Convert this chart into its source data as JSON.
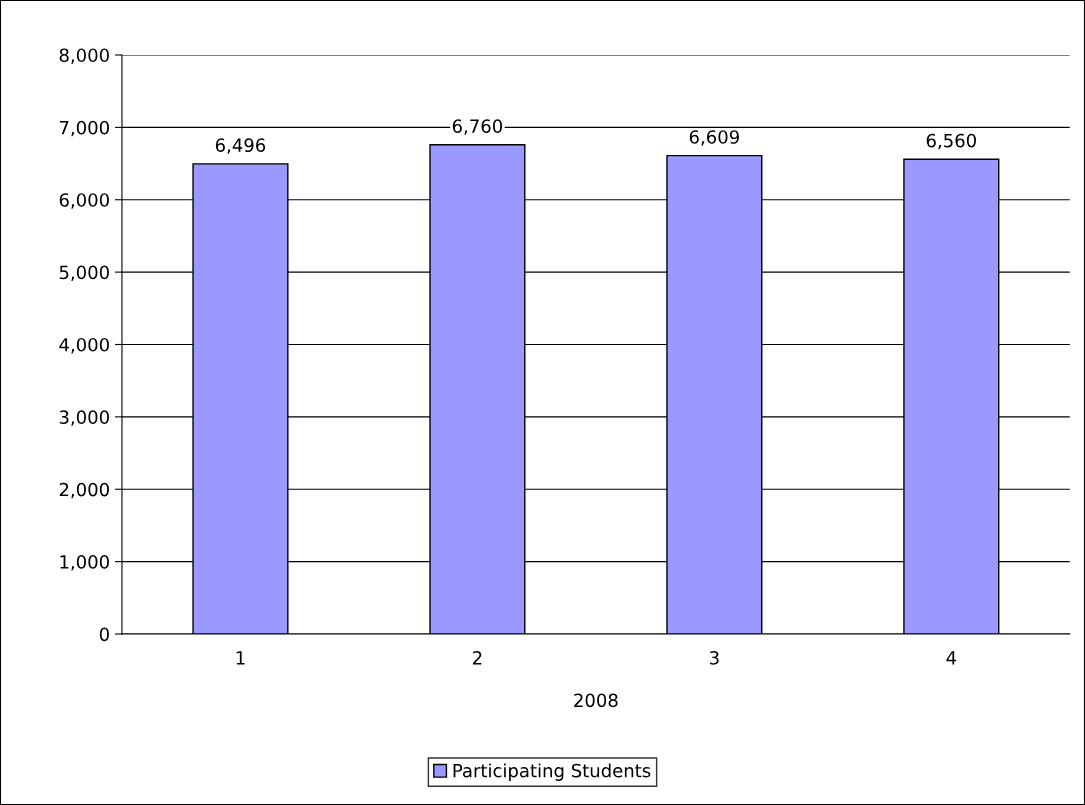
{
  "chart_data": {
    "type": "bar",
    "xlabel": "2008",
    "categories": [
      "1",
      "2",
      "3",
      "4"
    ],
    "series": [
      {
        "name": "Participating Students",
        "color": "#9999ff",
        "values": [
          6496,
          6760,
          6609,
          6560
        ],
        "value_labels": [
          "6,496",
          "6,760",
          "6,609",
          "6,560"
        ]
      }
    ],
    "ylim": [
      0,
      8000
    ],
    "yticks": [
      {
        "value": 0,
        "label": "0"
      },
      {
        "value": 1000,
        "label": "1,000"
      },
      {
        "value": 2000,
        "label": "2,000"
      },
      {
        "value": 3000,
        "label": "3,000"
      },
      {
        "value": 4000,
        "label": "4,000"
      },
      {
        "value": 5000,
        "label": "5,000"
      },
      {
        "value": 6000,
        "label": "6,000"
      },
      {
        "value": 7000,
        "label": "7,000"
      },
      {
        "value": 8000,
        "label": "8,000"
      }
    ],
    "grid": "y",
    "legend": "bottom"
  }
}
